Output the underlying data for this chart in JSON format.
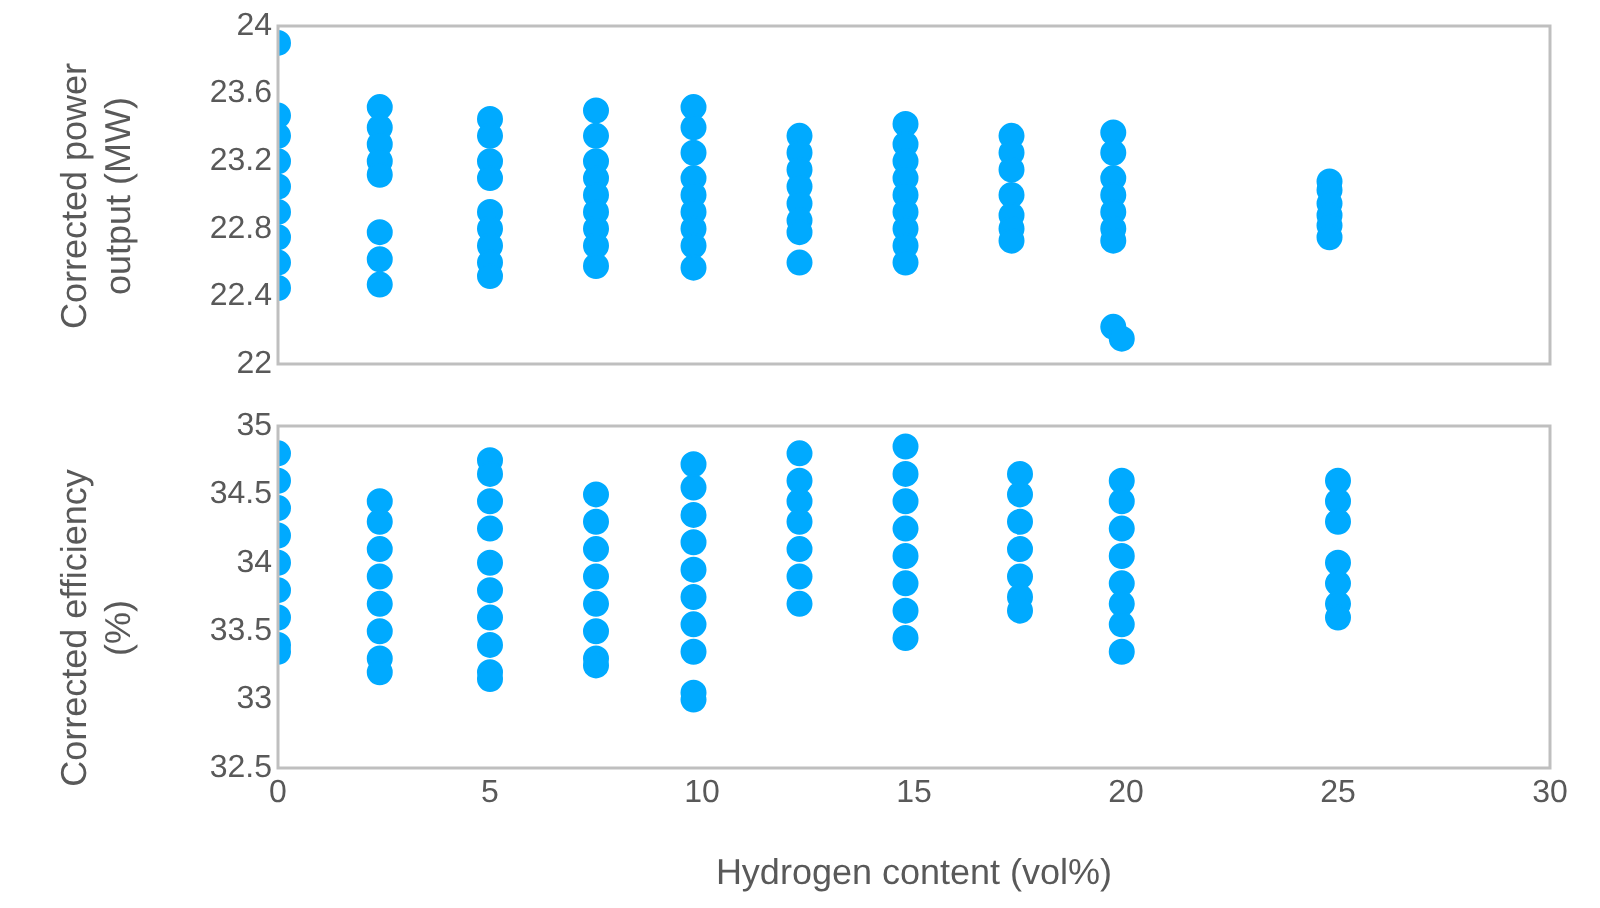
{
  "chart_data": [
    {
      "type": "scatter",
      "ylabel": "Corrected power output (MW)",
      "xlim": [
        0,
        30
      ],
      "xticks": [
        0,
        5,
        10,
        15,
        20,
        25,
        30
      ],
      "ylim": [
        22,
        24
      ],
      "yticks": [
        22,
        22.4,
        22.8,
        23.2,
        23.6,
        24
      ],
      "tick_labels": "y",
      "grid": false,
      "legend": false,
      "marker": "circle",
      "series": [
        {
          "color": "#00aaff",
          "x": [
            0,
            0,
            0,
            0,
            0,
            0,
            0,
            0,
            0,
            2.4,
            2.4,
            2.4,
            2.4,
            2.4,
            2.4,
            2.4,
            2.4,
            5,
            5,
            5,
            5,
            5,
            5,
            5,
            5,
            5,
            7.5,
            7.5,
            7.5,
            7.5,
            7.5,
            7.5,
            7.5,
            7.5,
            7.5,
            9.8,
            9.8,
            9.8,
            9.8,
            9.8,
            9.8,
            9.8,
            9.8,
            9.8,
            12.3,
            12.3,
            12.3,
            12.3,
            12.3,
            12.3,
            12.3,
            12.3,
            14.8,
            14.8,
            14.8,
            14.8,
            14.8,
            14.8,
            14.8,
            14.8,
            14.8,
            17.3,
            17.3,
            17.3,
            17.3,
            17.3,
            17.3,
            17.3,
            19.7,
            19.7,
            19.7,
            19.7,
            19.7,
            19.7,
            19.7,
            19.7,
            19.9,
            24.8,
            24.8,
            24.8,
            24.8,
            24.8,
            24.8
          ],
          "values": [
            23.9,
            23.47,
            23.35,
            23.2,
            23.05,
            22.9,
            22.75,
            22.6,
            22.45,
            23.52,
            23.4,
            23.3,
            23.2,
            23.12,
            22.78,
            22.62,
            22.47,
            23.45,
            23.35,
            23.2,
            23.1,
            22.9,
            22.8,
            22.7,
            22.6,
            22.52,
            23.5,
            23.35,
            23.2,
            23.1,
            23,
            22.9,
            22.8,
            22.7,
            22.58,
            23.52,
            23.4,
            23.25,
            23.1,
            23,
            22.9,
            22.8,
            22.7,
            22.57,
            23.35,
            23.25,
            23.15,
            23.05,
            22.95,
            22.85,
            22.78,
            22.6,
            23.42,
            23.3,
            23.2,
            23.1,
            23,
            22.9,
            22.8,
            22.7,
            22.6,
            23.35,
            23.25,
            23.15,
            23,
            22.88,
            22.8,
            22.73,
            23.37,
            23.25,
            23.1,
            23,
            22.9,
            22.8,
            22.73,
            22.22,
            22.15,
            23.08,
            23.03,
            22.95,
            22.88,
            22.82,
            22.75
          ]
        }
      ]
    },
    {
      "type": "scatter",
      "xlabel": "Hydrogen content (vol%)",
      "ylabel": "Corrected efficiency (%)",
      "xlim": [
        0,
        30
      ],
      "xticks": [
        0,
        5,
        10,
        15,
        20,
        25,
        30
      ],
      "ylim": [
        32.5,
        35
      ],
      "yticks": [
        32.5,
        33,
        33.5,
        34,
        34.5,
        35
      ],
      "grid": false,
      "legend": false,
      "marker": "circle",
      "series": [
        {
          "color": "#00aaff",
          "x": [
            0,
            0,
            0,
            0,
            0,
            0,
            0,
            0,
            0,
            2.4,
            2.4,
            2.4,
            2.4,
            2.4,
            2.4,
            2.4,
            2.4,
            5,
            5,
            5,
            5,
            5,
            5,
            5,
            5,
            5,
            5,
            7.5,
            7.5,
            7.5,
            7.5,
            7.5,
            7.5,
            7.5,
            7.5,
            9.8,
            9.8,
            9.8,
            9.8,
            9.8,
            9.8,
            9.8,
            9.8,
            9.8,
            9.8,
            12.3,
            12.3,
            12.3,
            12.3,
            12.3,
            12.3,
            12.3,
            14.8,
            14.8,
            14.8,
            14.8,
            14.8,
            14.8,
            14.8,
            14.8,
            17.5,
            17.5,
            17.5,
            17.5,
            17.5,
            17.5,
            17.5,
            19.9,
            19.9,
            19.9,
            19.9,
            19.9,
            19.9,
            19.9,
            19.9,
            25,
            25,
            25,
            25,
            25,
            25,
            25
          ],
          "values": [
            34.8,
            34.6,
            34.4,
            34.2,
            34,
            33.8,
            33.6,
            33.4,
            33.35,
            34.45,
            34.3,
            34.1,
            33.9,
            33.7,
            33.5,
            33.3,
            33.2,
            34.75,
            34.65,
            34.45,
            34.25,
            34,
            33.8,
            33.6,
            33.4,
            33.2,
            33.15,
            34.5,
            34.3,
            34.1,
            33.9,
            33.7,
            33.5,
            33.3,
            33.25,
            34.72,
            34.55,
            34.35,
            34.15,
            33.95,
            33.75,
            33.55,
            33.35,
            33.05,
            33,
            34.8,
            34.6,
            34.45,
            34.3,
            34.1,
            33.9,
            33.7,
            34.85,
            34.65,
            34.45,
            34.25,
            34.05,
            33.85,
            33.65,
            33.45,
            34.65,
            34.5,
            34.3,
            34.1,
            33.9,
            33.75,
            33.65,
            34.6,
            34.45,
            34.25,
            34.05,
            33.85,
            33.7,
            33.55,
            33.35,
            34.6,
            34.45,
            34.3,
            34,
            33.85,
            33.7,
            33.6
          ]
        }
      ]
    }
  ]
}
